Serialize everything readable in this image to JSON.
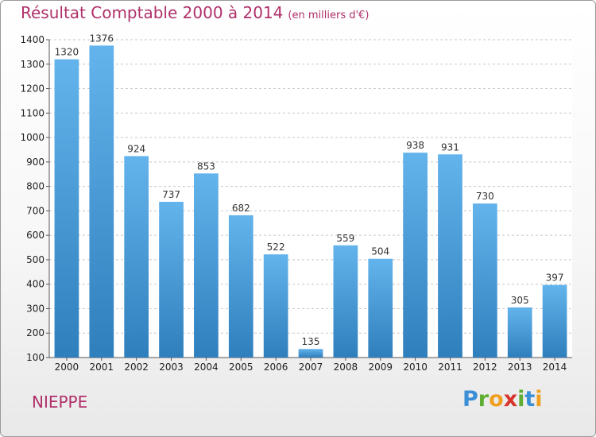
{
  "colors": {
    "title": "#b0306a",
    "bar_top": "#63b3ec",
    "bar_bottom": "#2f7fbd",
    "grid": "#c8c8c8"
  },
  "footer": {
    "commune": "NIEPPE",
    "logo_letters": [
      {
        "ch": "P",
        "color": "#3a8fd6"
      },
      {
        "ch": "r",
        "color": "#5fae33"
      },
      {
        "ch": "o",
        "color": "#f0a020"
      },
      {
        "ch": "x",
        "color": "#d9342b"
      },
      {
        "ch": "i",
        "color": "#5fae33"
      },
      {
        "ch": "t",
        "color": "#3a8fd6"
      },
      {
        "ch": "i",
        "color": "#f0a020"
      }
    ]
  },
  "chart_data": {
    "type": "bar",
    "title": "Résultat Comptable 2000 à 2014",
    "subtitle": "(en milliers d'€)",
    "xlabel": "",
    "ylabel": "",
    "categories": [
      "2000",
      "2001",
      "2002",
      "2003",
      "2004",
      "2005",
      "2006",
      "2007",
      "2008",
      "2009",
      "2010",
      "2011",
      "2012",
      "2013",
      "2014"
    ],
    "values": [
      1320,
      1376,
      924,
      737,
      853,
      682,
      522,
      135,
      559,
      504,
      938,
      931,
      730,
      305,
      397
    ],
    "ylim": [
      100,
      1400
    ],
    "yticks": [
      100,
      200,
      300,
      400,
      500,
      600,
      700,
      800,
      900,
      1000,
      1100,
      1200,
      1300,
      1400
    ],
    "grid": true
  }
}
